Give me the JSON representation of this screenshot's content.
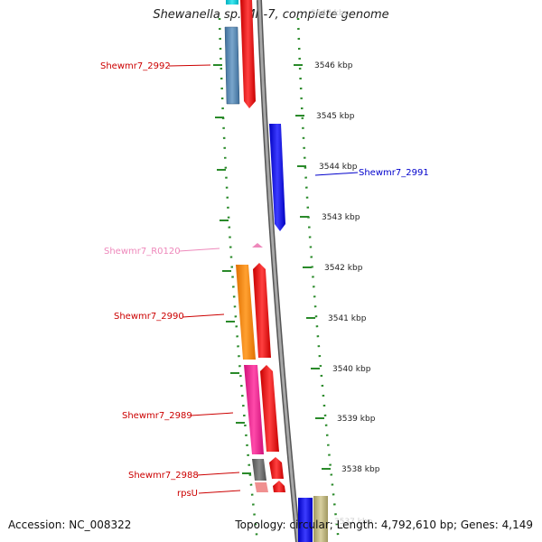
{
  "title": "Shewanella sp. MR-7, complete genome",
  "footer": {
    "accession": "Accession: NC_008322",
    "topology": "Topology: circular; Length: 4,792,610 bp; Genes: 4,149"
  },
  "colors": {
    "backbone": "#8a8a8a",
    "tick": "#2a8a2a",
    "label_red": "#cc0000",
    "label_blue": "#0000cc",
    "label_pink": "#ee88bb"
  },
  "kbp_ticks": [
    {
      "label": "3547 kbp",
      "faded": true
    },
    {
      "label": "3546 kbp"
    },
    {
      "label": "3545 kbp"
    },
    {
      "label": "3544 kbp"
    },
    {
      "label": "3543 kbp"
    },
    {
      "label": "3542 kbp"
    },
    {
      "label": "3541 kbp"
    },
    {
      "label": "3540 kbp"
    },
    {
      "label": "3539 kbp"
    },
    {
      "label": "3538 kbp"
    },
    {
      "label": "3537 kbp",
      "faded": true
    }
  ],
  "gene_labels": [
    {
      "name": "Shewmr7_2992",
      "color": "#cc0000"
    },
    {
      "name": "Shewmr7_2991",
      "color": "#0000cc"
    },
    {
      "name": "Shewmr7_R0120",
      "color": "#ee88bb"
    },
    {
      "name": "Shewmr7_2990",
      "color": "#cc0000"
    },
    {
      "name": "Shewmr7_2989",
      "color": "#cc0000"
    },
    {
      "name": "Shewmr7_2988",
      "color": "#cc0000"
    },
    {
      "name": "rpsU",
      "color": "#cc0000"
    }
  ]
}
